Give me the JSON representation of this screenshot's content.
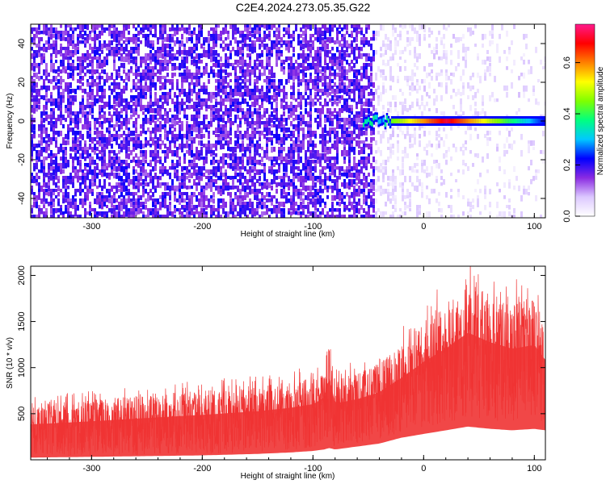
{
  "title": "C2E4.2024.273.05.35.G22",
  "chart_data": [
    {
      "type": "heatmap",
      "xlabel": "Height of straight line (km)",
      "ylabel": "Frequency (Hz)",
      "xlim": [
        -355,
        110
      ],
      "ylim": [
        -50,
        50
      ],
      "x_ticks": [
        -300,
        -200,
        -100,
        0,
        100
      ],
      "y_ticks": [
        -40,
        -20,
        0,
        20,
        40
      ],
      "colorbar": {
        "label": "Normalized spectral amplitude",
        "range": [
          0,
          0.75
        ],
        "ticks": [
          0.0,
          0.2,
          0.4,
          0.6
        ],
        "colors": [
          "#ffffff",
          "#dcc8ff",
          "#8a2be2",
          "#0000ff",
          "#00c8ff",
          "#00ff80",
          "#80ff00",
          "#ffff00",
          "#ff8000",
          "#ff0000",
          "#ff1a8c"
        ]
      },
      "signal_line": {
        "frequency": 0,
        "x_start": -55,
        "x_end": 110,
        "peak_x": 20,
        "peak_amplitude": 0.7
      },
      "noise_boundary_x": -45
    },
    {
      "type": "line",
      "xlabel": "Height of straight line (km)",
      "ylabel": "SNR (10 * v/v)",
      "xlim": [
        -355,
        110
      ],
      "ylim": [
        0,
        2100
      ],
      "x_ticks": [
        -300,
        -200,
        -100,
        0,
        100
      ],
      "y_ticks": [
        500,
        1000,
        1500,
        2000
      ],
      "series": [
        {
          "color": "#f03333",
          "envelope_x": [
            -355,
            -300,
            -250,
            -200,
            -150,
            -120,
            -100,
            -90,
            -85,
            -80,
            -60,
            -40,
            -20,
            0,
            20,
            40,
            60,
            80,
            100,
            110
          ],
          "upper": [
            600,
            650,
            700,
            750,
            800,
            850,
            900,
            1000,
            1350,
            900,
            950,
            1050,
            1250,
            1500,
            1700,
            1950,
            1800,
            1700,
            1750,
            1500
          ],
          "lower": [
            30,
            40,
            50,
            60,
            80,
            100,
            120,
            140,
            160,
            140,
            180,
            220,
            300,
            350,
            400,
            450,
            420,
            400,
            420,
            400
          ]
        }
      ]
    }
  ]
}
